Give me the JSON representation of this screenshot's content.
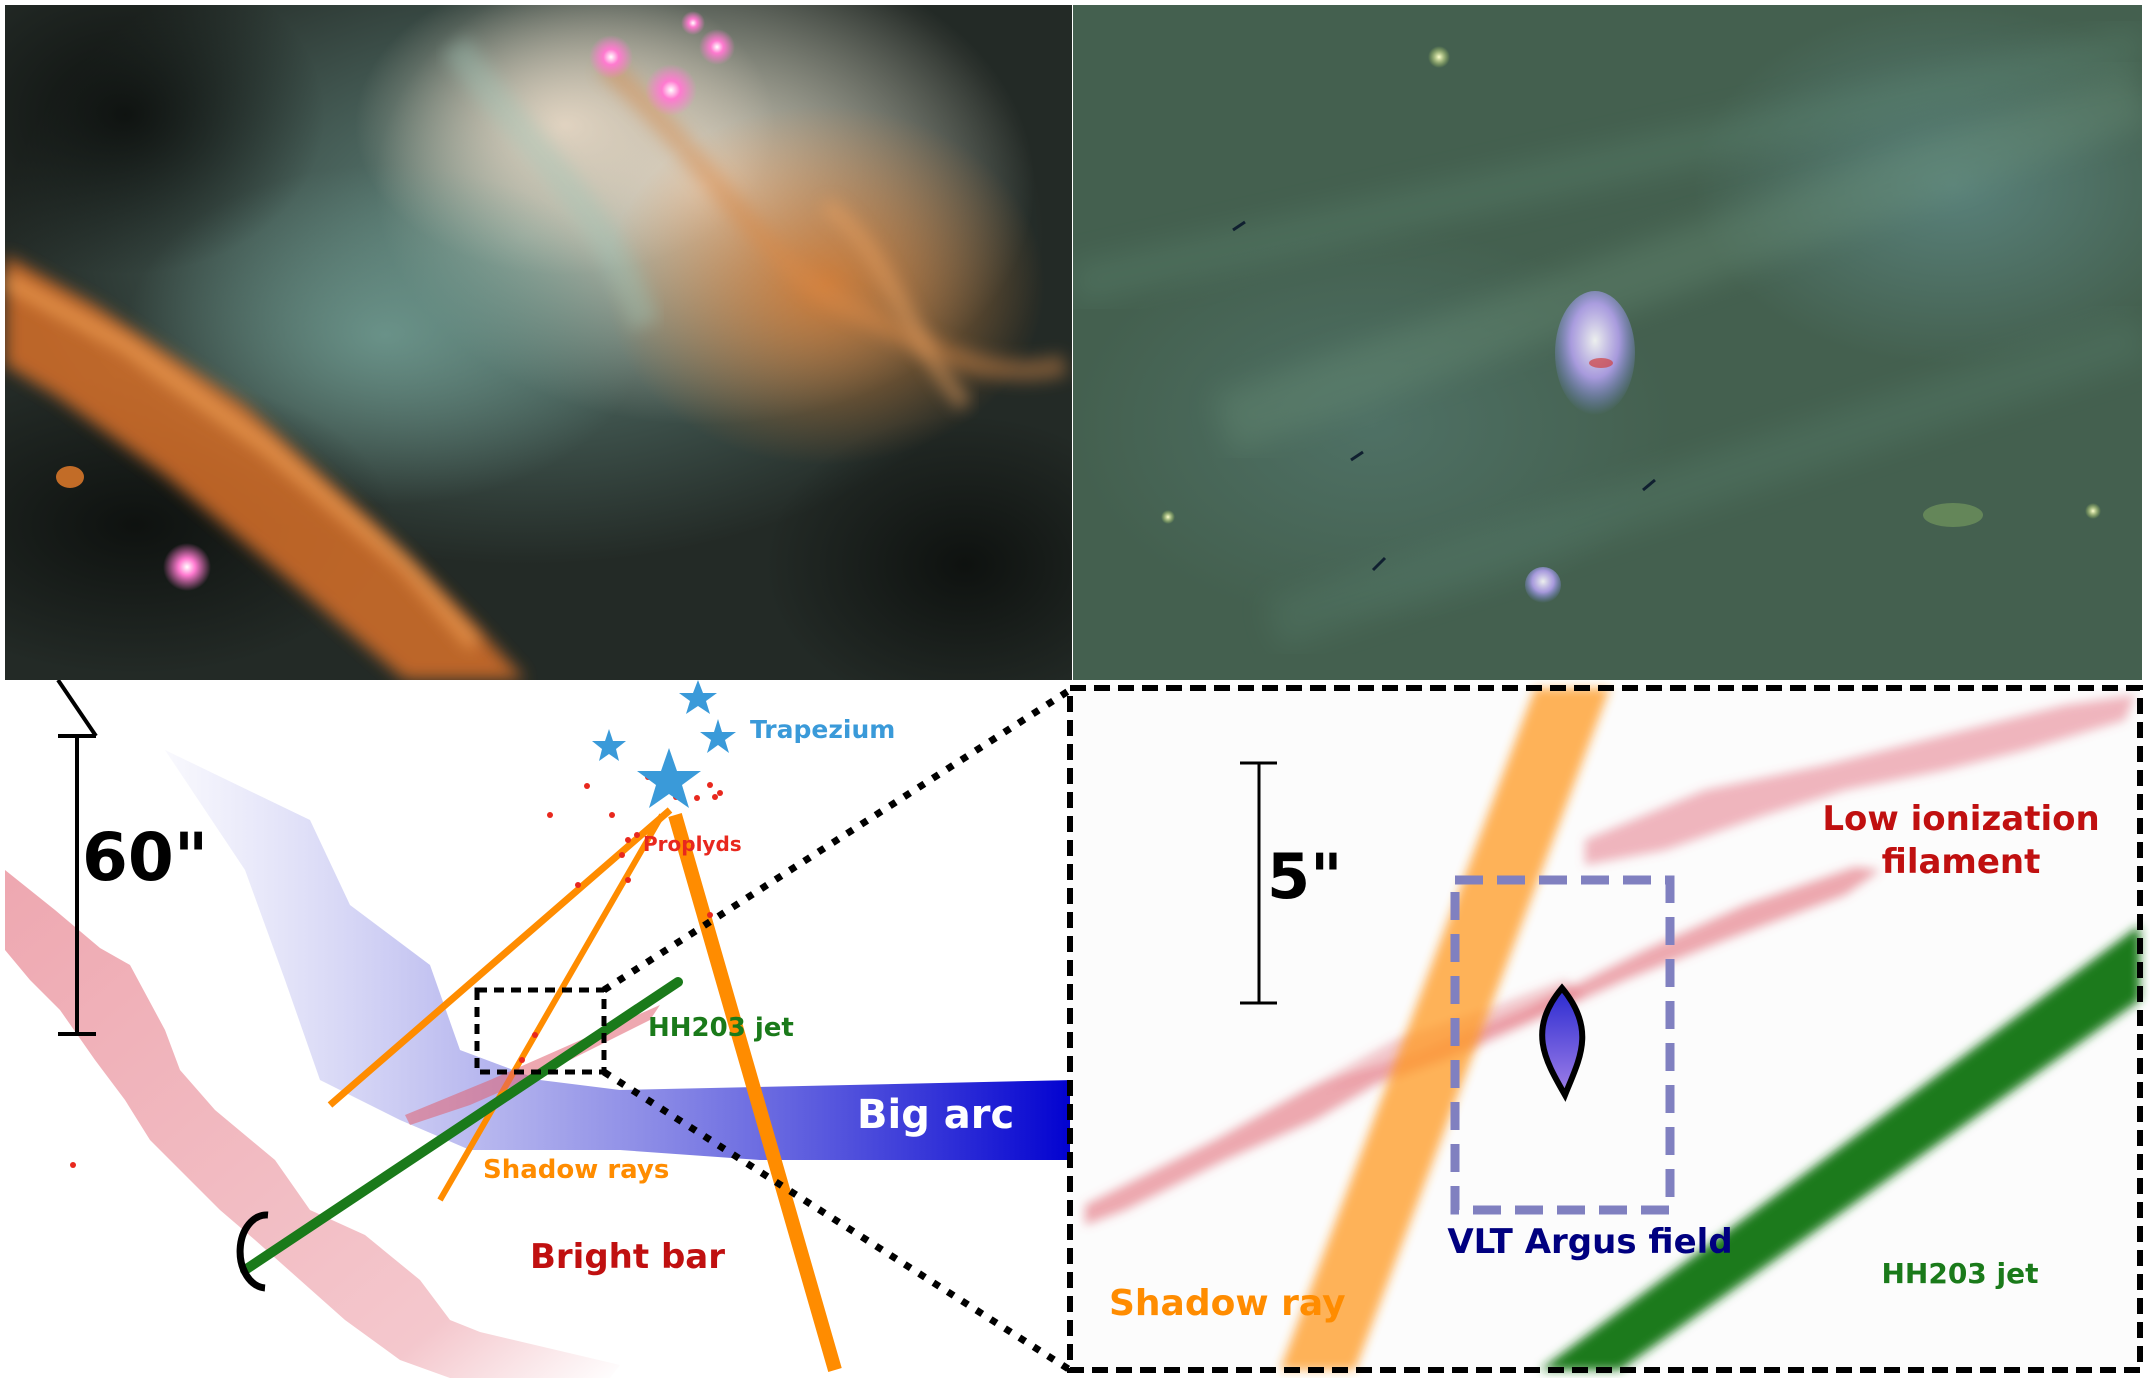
{
  "figure": {
    "overview_photo": {
      "description_icon": "orion-nebula-photo"
    },
    "zoom_photo": {
      "description_icon": "proplyd-closeup-photo"
    },
    "left_schematic": {
      "scale_label": "60\"",
      "labels": {
        "trapezium": "Trapezium",
        "proplyds": "Proplyds",
        "hh203_jet": "HH203 jet",
        "big_arc": "Big arc",
        "shadow_rays": "Shadow rays",
        "bright_bar": "Bright bar"
      }
    },
    "right_schematic": {
      "scale_label": "5\"",
      "labels": {
        "low_ionization_line1": "Low ionization",
        "low_ionization_line2": "filament",
        "vlt_argus_field": "VLT Argus field",
        "shadow_ray": "Shadow ray",
        "hh203_jet": "HH203 jet"
      }
    },
    "colors": {
      "trapezium": "#3a9ad9",
      "proplyds": "#e8281e",
      "hh203_jet": "#1a7a1a",
      "big_arc": "#1010d0",
      "shadow": "#ff8c00",
      "bright_bar": "#c01010",
      "vlt_argus": "#000080"
    }
  }
}
